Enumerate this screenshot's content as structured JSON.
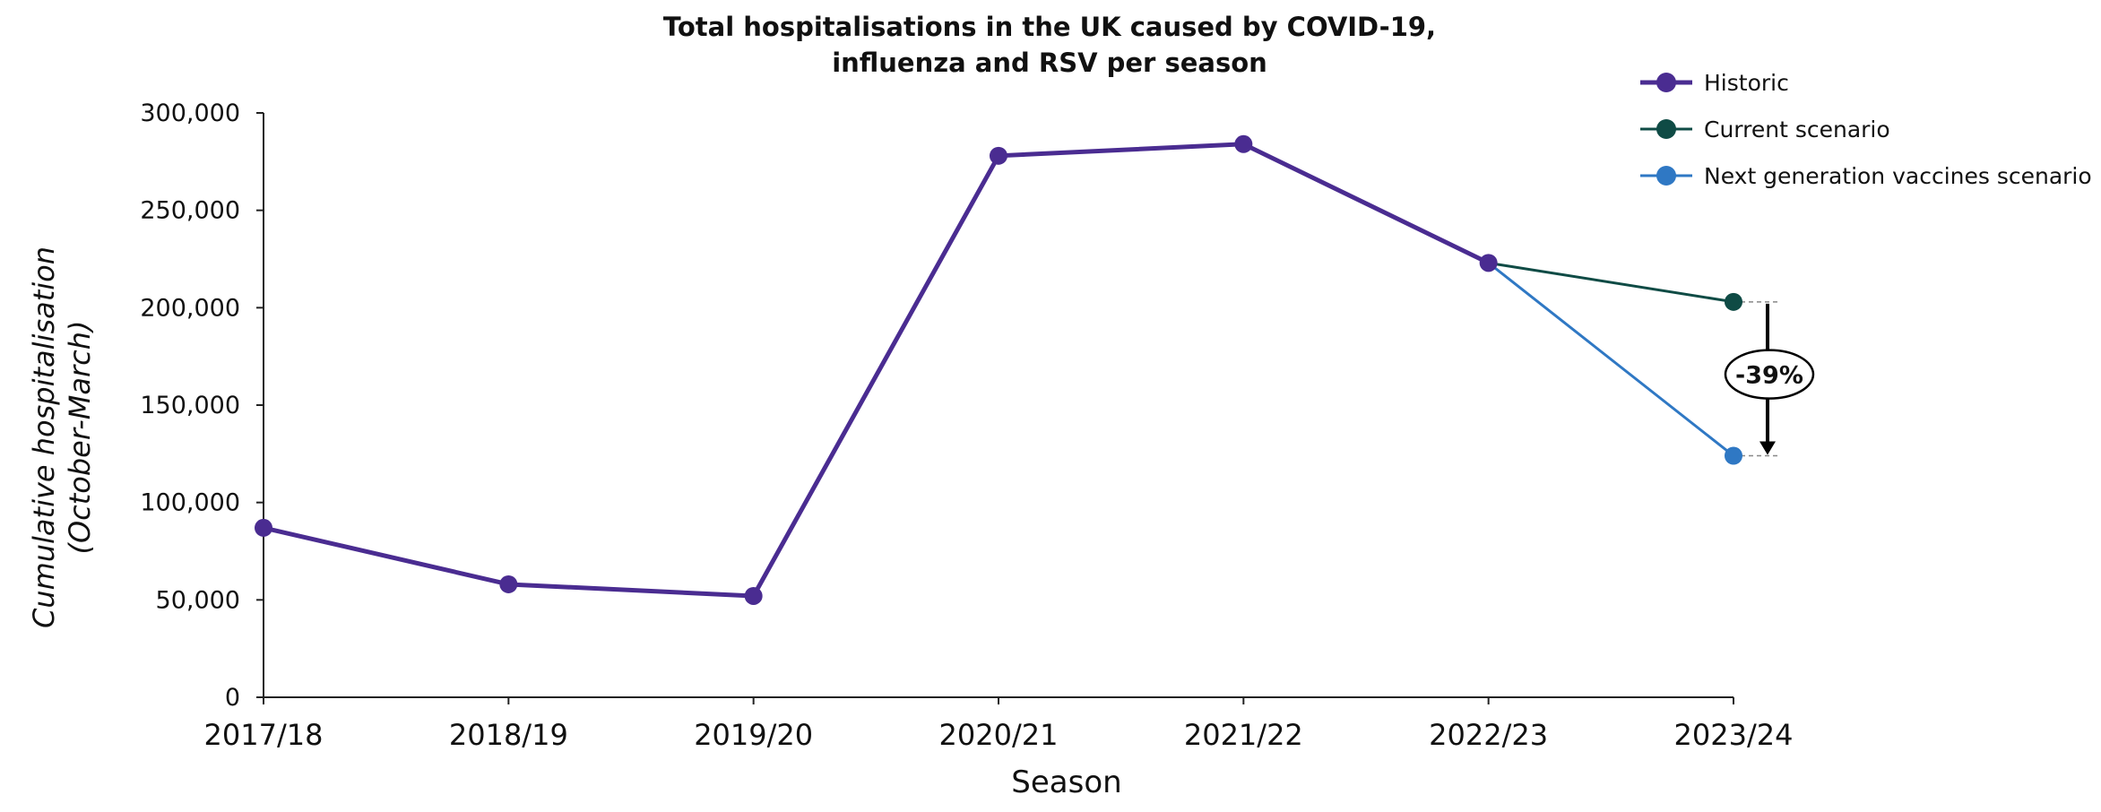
{
  "chart_data": {
    "type": "line",
    "title": "Total hospitalisations in the UK caused by COVID-19, influenza and RSV per season",
    "title_lines": [
      "Total hospitalisations in the UK caused by COVID-19,",
      "influenza and RSV per season"
    ],
    "xlabel": "Season",
    "ylabel": "Cumulative hospitalisation (October-March)",
    "ylabel_lines": [
      "Cumulative hospitalisation",
      "(October-March)"
    ],
    "categories": [
      "2017/18",
      "2018/19",
      "2019/20",
      "2020/21",
      "2021/22",
      "2022/23",
      "2023/24"
    ],
    "ylim": [
      0,
      300000
    ],
    "yticks": [
      0,
      50000,
      100000,
      150000,
      200000,
      250000,
      300000
    ],
    "ytick_labels": [
      "0",
      "50,000",
      "100,000",
      "150,000",
      "200,000",
      "250,000",
      "300,000"
    ],
    "grid": false,
    "legend_position": "top-right",
    "series": [
      {
        "name": "Historic",
        "color": "#4A2C91",
        "points": [
          {
            "x": "2017/18",
            "y": 87000
          },
          {
            "x": "2018/19",
            "y": 58000
          },
          {
            "x": "2019/20",
            "y": 52000
          },
          {
            "x": "2020/21",
            "y": 278000
          },
          {
            "x": "2021/22",
            "y": 284000
          },
          {
            "x": "2022/23",
            "y": 223000
          }
        ]
      },
      {
        "name": "Current scenario",
        "color": "#0F4B45",
        "points": [
          {
            "x": "2022/23",
            "y": 223000
          },
          {
            "x": "2023/24",
            "y": 203000
          }
        ]
      },
      {
        "name": "Next generation vaccines scenario",
        "color": "#2F78C4",
        "points": [
          {
            "x": "2022/23",
            "y": 223000
          },
          {
            "x": "2023/24",
            "y": 124000
          }
        ]
      }
    ],
    "annotations": [
      {
        "text": "-39%",
        "category": "2023/24",
        "from": 203000,
        "to": 124000
      }
    ]
  }
}
